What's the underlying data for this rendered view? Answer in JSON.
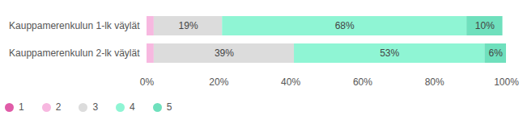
{
  "chart_data": {
    "type": "bar",
    "orientation": "horizontal",
    "stacked": true,
    "data_labels": true,
    "legend": "bottom",
    "grid": false,
    "categories": [
      "Kauppamerenkulun 1-lk väylät",
      "Kauppamerenkulun 2-lk väylät"
    ],
    "series": [
      {
        "name": "1",
        "color": "#e05ca8",
        "values": [
          0,
          0
        ],
        "value_labels": [
          null,
          null
        ]
      },
      {
        "name": "2",
        "color": "#f7b8e0",
        "values": [
          2,
          2
        ],
        "value_labels": [
          null,
          null
        ]
      },
      {
        "name": "3",
        "color": "#dcdcdc",
        "values": [
          19,
          39
        ],
        "value_labels": [
          "19%",
          "39%"
        ]
      },
      {
        "name": "4",
        "color": "#8ff5d4",
        "values": [
          68,
          53
        ],
        "value_labels": [
          "68%",
          "53%"
        ]
      },
      {
        "name": "5",
        "color": "#6fe0bd",
        "values": [
          10,
          6
        ],
        "value_labels": [
          "10%",
          "6%"
        ]
      }
    ],
    "xlim": [
      0,
      100
    ],
    "xticks": [
      {
        "value": 0,
        "label": "0%"
      },
      {
        "value": 20,
        "label": "20%"
      },
      {
        "value": 40,
        "label": "40%"
      },
      {
        "value": 60,
        "label": "60%"
      },
      {
        "value": 80,
        "label": "80%"
      },
      {
        "value": 100,
        "label": "100%"
      }
    ]
  }
}
